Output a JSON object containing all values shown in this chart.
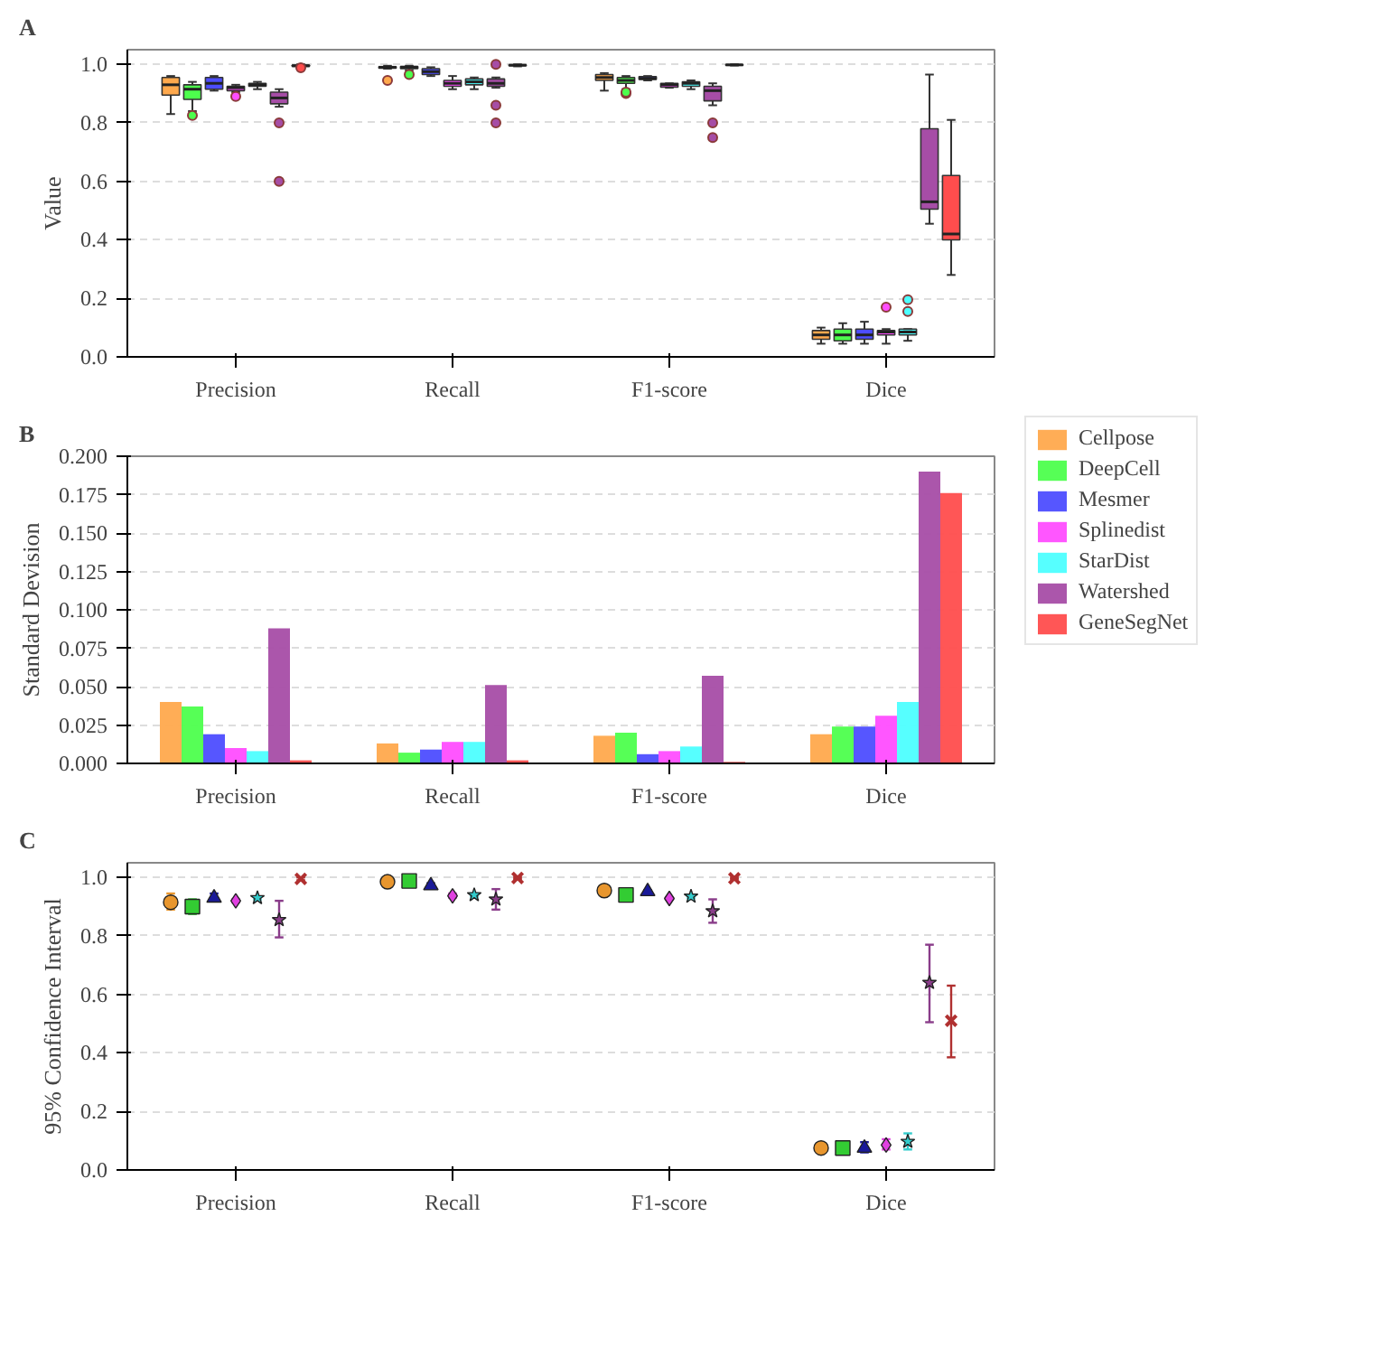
{
  "chart_data": [
    {
      "type": "box",
      "title": "A",
      "ylabel": "Value",
      "categories": [
        "Precision",
        "Recall",
        "F1-score",
        "Dice"
      ],
      "ylim": [
        0,
        1.05
      ],
      "yticks": [
        {
          "value": 0,
          "label": "0.0"
        },
        0.2,
        0.4,
        0.6,
        0.8,
        {
          "value": 1,
          "label": "1.0"
        }
      ],
      "grid": "y",
      "series": [
        {
          "color": "#ffa94d",
          "boxes": [
            {
              "low": 0.83,
              "q1": 0.895,
              "median": 0.93,
              "q3": 0.955,
              "high": 0.96
            },
            {
              "low": 0.985,
              "q1": 0.987,
              "median": 0.99,
              "q3": 0.992,
              "high": 0.995,
              "outliers": [
                0.945
              ]
            },
            {
              "low": 0.91,
              "q1": 0.945,
              "median": 0.955,
              "q3": 0.965,
              "high": 0.97
            },
            {
              "low": 0.045,
              "q1": 0.06,
              "median": 0.075,
              "q3": 0.09,
              "high": 0.1
            }
          ]
        },
        {
          "color": "#4dff4d",
          "boxes": [
            {
              "low": 0.84,
              "q1": 0.88,
              "median": 0.915,
              "q3": 0.93,
              "high": 0.94,
              "outliers": [
                0.825
              ]
            },
            {
              "low": 0.98,
              "q1": 0.985,
              "median": 0.99,
              "q3": 0.993,
              "high": 0.995,
              "outliers": [
                0.965
              ]
            },
            {
              "low": 0.915,
              "q1": 0.935,
              "median": 0.945,
              "q3": 0.955,
              "high": 0.96,
              "outliers": [
                0.9,
                0.905
              ]
            },
            {
              "low": 0.045,
              "q1": 0.055,
              "median": 0.075,
              "q3": 0.095,
              "high": 0.115
            }
          ]
        },
        {
          "color": "#4d4dff",
          "boxes": [
            {
              "low": 0.91,
              "q1": 0.915,
              "median": 0.935,
              "q3": 0.955,
              "high": 0.96
            },
            {
              "low": 0.96,
              "q1": 0.965,
              "median": 0.975,
              "q3": 0.985,
              "high": 0.99
            },
            {
              "low": 0.945,
              "q1": 0.948,
              "median": 0.952,
              "q3": 0.958,
              "high": 0.96
            },
            {
              "low": 0.045,
              "q1": 0.06,
              "median": 0.075,
              "q3": 0.095,
              "high": 0.12
            }
          ]
        },
        {
          "color": "#ff4dff",
          "boxes": [
            {
              "low": 0.905,
              "q1": 0.91,
              "median": 0.92,
              "q3": 0.925,
              "high": 0.93,
              "outliers": [
                0.89
              ]
            },
            {
              "low": 0.915,
              "q1": 0.925,
              "median": 0.935,
              "q3": 0.945,
              "high": 0.96
            },
            {
              "low": 0.92,
              "q1": 0.922,
              "median": 0.93,
              "q3": 0.935,
              "high": 0.935
            },
            {
              "low": 0.045,
              "q1": 0.075,
              "median": 0.085,
              "q3": 0.09,
              "high": 0.095,
              "outliers": [
                0.17
              ]
            }
          ]
        },
        {
          "color": "#4dffff",
          "boxes": [
            {
              "low": 0.915,
              "q1": 0.925,
              "median": 0.93,
              "q3": 0.935,
              "high": 0.94
            },
            {
              "low": 0.915,
              "q1": 0.93,
              "median": 0.94,
              "q3": 0.95,
              "high": 0.955
            },
            {
              "low": 0.915,
              "q1": 0.925,
              "median": 0.935,
              "q3": 0.94,
              "high": 0.945
            },
            {
              "low": 0.055,
              "q1": 0.075,
              "median": 0.085,
              "q3": 0.095,
              "high": 0.095,
              "outliers": [
                0.195,
                0.155
              ]
            }
          ]
        },
        {
          "color": "#a64da6",
          "boxes": [
            {
              "low": 0.855,
              "q1": 0.865,
              "median": 0.885,
              "q3": 0.905,
              "high": 0.915,
              "outliers": [
                0.8,
                0.6
              ]
            },
            {
              "low": 0.92,
              "q1": 0.925,
              "median": 0.935,
              "q3": 0.95,
              "high": 0.955,
              "outliers": [
                1.0,
                0.86,
                0.8
              ]
            },
            {
              "low": 0.86,
              "q1": 0.875,
              "median": 0.91,
              "q3": 0.925,
              "high": 0.935,
              "outliers": [
                0.8,
                0.75
              ]
            },
            {
              "low": 0.455,
              "q1": 0.505,
              "median": 0.53,
              "q3": 0.78,
              "high": 0.965
            }
          ]
        },
        {
          "color": "#ff4d4d",
          "boxes": [
            {
              "low": 0.99,
              "q1": 0.993,
              "median": 0.995,
              "q3": 0.997,
              "high": 1.0,
              "outliers": [
                0.988
              ]
            },
            {
              "low": 0.993,
              "q1": 0.995,
              "median": 0.997,
              "q3": 0.998,
              "high": 1.0
            },
            {
              "low": 0.996,
              "q1": 0.997,
              "median": 0.998,
              "q3": 0.999,
              "high": 1.0
            },
            {
              "low": 0.28,
              "q1": 0.4,
              "median": 0.42,
              "q3": 0.62,
              "high": 0.81
            }
          ]
        }
      ]
    },
    {
      "type": "bar",
      "title": "B",
      "ylabel": "Standard Devision",
      "categories": [
        "Precision",
        "Recall",
        "F1-score",
        "Dice"
      ],
      "ylim": [
        0,
        0.2
      ],
      "yticks": [
        {
          "value": 0,
          "label": "0.000"
        },
        {
          "value": 0.025,
          "label": "0.025"
        },
        {
          "value": 0.05,
          "label": "0.050"
        },
        {
          "value": 0.075,
          "label": "0.075"
        },
        {
          "value": 0.1,
          "label": "0.100"
        },
        {
          "value": 0.125,
          "label": "0.125"
        },
        {
          "value": 0.15,
          "label": "0.150"
        },
        {
          "value": 0.175,
          "label": "0.175"
        },
        {
          "value": 0.2,
          "label": "0.200"
        }
      ],
      "grid": "y",
      "legend": "right",
      "series": [
        {
          "name": "Cellpose",
          "color": "#ffa94d",
          "values": [
            0.04,
            0.013,
            0.018,
            0.019
          ]
        },
        {
          "name": "DeepCell",
          "color": "#4dff4d",
          "values": [
            0.037,
            0.007,
            0.02,
            0.024
          ]
        },
        {
          "name": "Mesmer",
          "color": "#4d4dff",
          "values": [
            0.019,
            0.009,
            0.006,
            0.024
          ]
        },
        {
          "name": "Splinedist",
          "color": "#ff4dff",
          "values": [
            0.01,
            0.014,
            0.008,
            0.031
          ]
        },
        {
          "name": "StarDist",
          "color": "#4dffff",
          "values": [
            0.008,
            0.014,
            0.011,
            0.04
          ]
        },
        {
          "name": "Watershed",
          "color": "#a64da6",
          "values": [
            0.088,
            0.051,
            0.057,
            0.19
          ]
        },
        {
          "name": "GeneSegNet",
          "color": "#ff4d4d",
          "values": [
            0.002,
            0.002,
            0.001,
            0.176
          ]
        }
      ]
    },
    {
      "type": "scatter",
      "title": "C",
      "ylabel": "95% Confidence Interval",
      "categories": [
        "Precision",
        "Recall",
        "F1-score",
        "Dice"
      ],
      "ylim": [
        0,
        1.05
      ],
      "yticks": [
        {
          "value": 0,
          "label": "0.0"
        },
        0.2,
        0.4,
        0.6,
        0.8,
        {
          "value": 1,
          "label": "1.0"
        }
      ],
      "grid": "y",
      "series": [
        {
          "color": "#e8962e",
          "marker": "circle",
          "values": [
            0.915,
            0.985,
            0.955,
            0.075
          ],
          "errors": [
            [
              0.89,
              0.945
            ],
            [
              0.98,
              0.99
            ],
            [
              0.95,
              0.96
            ],
            [
              0.07,
              0.08
            ]
          ]
        },
        {
          "color": "#33cc33",
          "marker": "square",
          "values": [
            0.9,
            0.988,
            0.94,
            0.075
          ],
          "errors": [
            [
              0.875,
              0.925
            ],
            [
              0.983,
              0.993
            ],
            [
              0.935,
              0.945
            ],
            [
              0.065,
              0.085
            ]
          ]
        },
        {
          "color": "#1a1a99",
          "marker": "triangle",
          "values": [
            0.93,
            0.972,
            0.952,
            0.075
          ],
          "errors": [
            [
              0.92,
              0.945
            ],
            [
              0.965,
              0.98
            ],
            [
              0.948,
              0.956
            ],
            [
              0.06,
              0.095
            ]
          ]
        },
        {
          "color": "#e040e0",
          "marker": "diamond",
          "values": [
            0.92,
            0.937,
            0.928,
            0.085
          ],
          "errors": [
            [
              0.915,
              0.925
            ],
            [
              0.93,
              0.945
            ],
            [
              0.925,
              0.932
            ],
            [
              0.07,
              0.105
            ]
          ]
        },
        {
          "color": "#33cccc",
          "marker": "star",
          "values": [
            0.93,
            0.94,
            0.935,
            0.097
          ],
          "errors": [
            [
              0.925,
              0.935
            ],
            [
              0.935,
              0.945
            ],
            [
              0.93,
              0.94
            ],
            [
              0.07,
              0.125
            ]
          ]
        },
        {
          "color": "#8a3d8a",
          "marker": "star",
          "values": [
            0.855,
            0.925,
            0.885,
            0.64
          ],
          "errors": [
            [
              0.795,
              0.92
            ],
            [
              0.89,
              0.96
            ],
            [
              0.845,
              0.925
            ],
            [
              0.505,
              0.77
            ]
          ]
        },
        {
          "color": "#b03030",
          "marker": "cross",
          "values": [
            0.995,
            0.998,
            0.997,
            0.51
          ],
          "errors": [
            [
              0.99,
              1.0
            ],
            [
              0.995,
              1.0
            ],
            [
              0.995,
              0.999
            ],
            [
              0.385,
              0.63
            ]
          ]
        }
      ]
    }
  ]
}
